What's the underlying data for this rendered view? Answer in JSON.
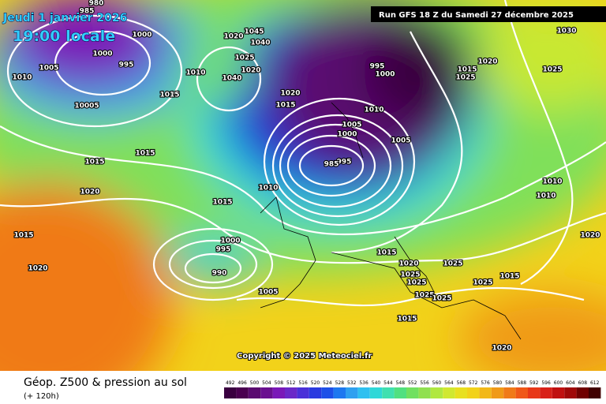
{
  "header": {
    "date": "Jeudi 1 janvier 2026",
    "time": "19:00 locale",
    "run": "Run GFS 18 Z du Samedi 27 décembre 2025"
  },
  "isobar_labels": [
    "980",
    "985",
    "1000",
    "995",
    "1000",
    "1005",
    "1010",
    "10005",
    "1045",
    "1040",
    "1025",
    "1020",
    "1010",
    "1040",
    "1020",
    "1015",
    "995",
    "1000",
    "1010",
    "1005",
    "1000",
    "995",
    "985",
    "1005",
    "1010",
    "1015",
    "1015",
    "1020",
    "1030",
    "1025",
    "1020",
    "1025",
    "1015",
    "1015",
    "1010",
    "1015",
    "1010",
    "1020",
    "1015",
    "1020",
    "1020",
    "1000",
    "995",
    "990",
    "1005",
    "1015",
    "1020",
    "1025",
    "1025",
    "1025",
    "1025",
    "1025",
    "1015",
    "1015",
    "1025",
    "1020"
  ],
  "footer": {
    "copyright": "Copyright © 2025 Meteociel.fr",
    "title": "Géop. Z500 & pression au sol",
    "subtitle": "(+ 120h)"
  },
  "colorbar": [
    492,
    496,
    500,
    504,
    508,
    512,
    516,
    520,
    524,
    528,
    532,
    536,
    540,
    544,
    548,
    552,
    556,
    560,
    564,
    568,
    572,
    576,
    580,
    584,
    588,
    592,
    596,
    600,
    604,
    608,
    612
  ]
}
